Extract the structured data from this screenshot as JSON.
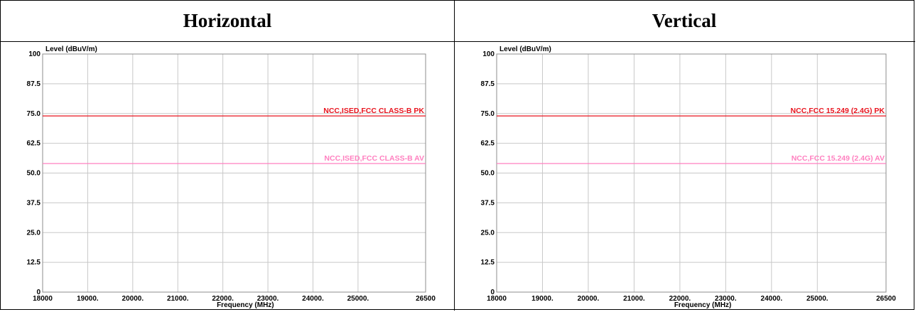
{
  "headers": [
    "Horizontal",
    "Vertical"
  ],
  "chart_data": [
    {
      "type": "line",
      "ylabel": "Level (dBuV/m)",
      "xlabel": "Frequency (MHz)",
      "xlim": [
        18000,
        26500
      ],
      "ylim": [
        0,
        100
      ],
      "y_ticks": [
        0,
        12.5,
        25.0,
        37.5,
        50.0,
        62.5,
        75.0,
        87.5,
        100
      ],
      "y_tick_labels": [
        "0",
        "12.5",
        "25.0",
        "37.5",
        "50.0",
        "62.5",
        "75.0",
        "87.5",
        "100"
      ],
      "x_ticks": [
        18000,
        19000,
        20000,
        21000,
        22000,
        23000,
        24000,
        25000,
        26500
      ],
      "x_tick_labels": [
        "18000",
        "19000.",
        "20000.",
        "21000.",
        "22000.",
        "23000.",
        "24000.",
        "25000.",
        "26500"
      ],
      "grid": true,
      "series": [
        {
          "name": "NCC,ISED,FCC CLASS-B PK",
          "color": "#e8141e",
          "x": [
            18000,
            26500
          ],
          "y": [
            74,
            74
          ]
        },
        {
          "name": "NCC,ISED,FCC CLASS-B AV",
          "color": "#ff80c0",
          "x": [
            18000,
            26500
          ],
          "y": [
            54,
            54
          ]
        }
      ]
    },
    {
      "type": "line",
      "ylabel": "Level (dBuV/m)",
      "xlabel": "Frequency (MHz)",
      "xlim": [
        18000,
        26500
      ],
      "ylim": [
        0,
        100
      ],
      "y_ticks": [
        0,
        12.5,
        25.0,
        37.5,
        50.0,
        62.5,
        75.0,
        87.5,
        100
      ],
      "y_tick_labels": [
        "0",
        "12.5",
        "25.0",
        "37.5",
        "50.0",
        "62.5",
        "75.0",
        "87.5",
        "100"
      ],
      "x_ticks": [
        18000,
        19000,
        20000,
        21000,
        22000,
        23000,
        24000,
        25000,
        26500
      ],
      "x_tick_labels": [
        "18000",
        "19000.",
        "20000.",
        "21000.",
        "22000.",
        "23000.",
        "24000.",
        "25000.",
        "26500"
      ],
      "grid": true,
      "series": [
        {
          "name": "NCC,FCC 15.249 (2.4G) PK",
          "color": "#e8141e",
          "x": [
            18000,
            26500
          ],
          "y": [
            74,
            74
          ]
        },
        {
          "name": "NCC,FCC 15.249 (2.4G) AV",
          "color": "#ff80c0",
          "x": [
            18000,
            26500
          ],
          "y": [
            54,
            54
          ]
        }
      ]
    }
  ]
}
